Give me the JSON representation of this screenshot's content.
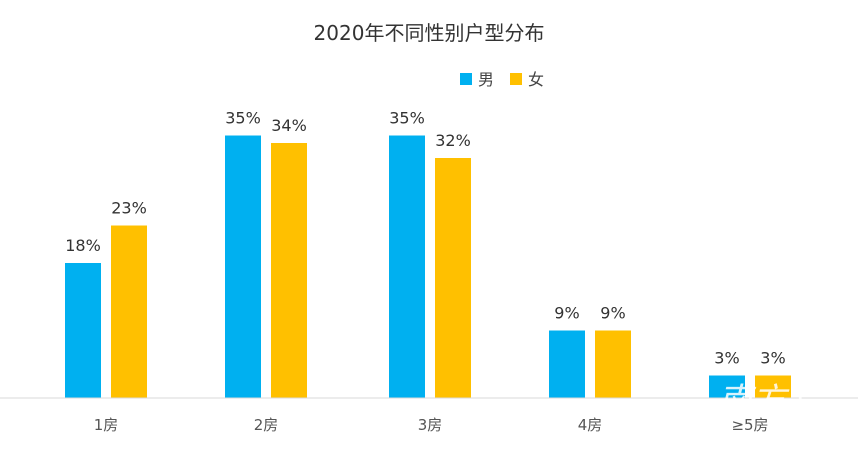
{
  "chart_data": {
    "type": "bar",
    "title": "2020年不同性别户型分布",
    "categories": [
      "1房",
      "2房",
      "3房",
      "4房",
      "≥5房"
    ],
    "series": [
      {
        "name": "男",
        "color": "#00B0F0",
        "values": [
          18,
          35,
          35,
          9,
          3
        ],
        "labels": [
          "18%",
          "35%",
          "35%",
          "9%",
          "3%"
        ]
      },
      {
        "name": "女",
        "color": "#FFC000",
        "values": [
          23,
          34,
          32,
          9,
          3
        ],
        "labels": [
          "23%",
          "34%",
          "32%",
          "9%",
          "3%"
        ]
      }
    ],
    "ylim": [
      0,
      40
    ],
    "grid": false,
    "legend_position": "top-right",
    "unit": "%"
  },
  "watermark": {
    "text": "南方+"
  }
}
